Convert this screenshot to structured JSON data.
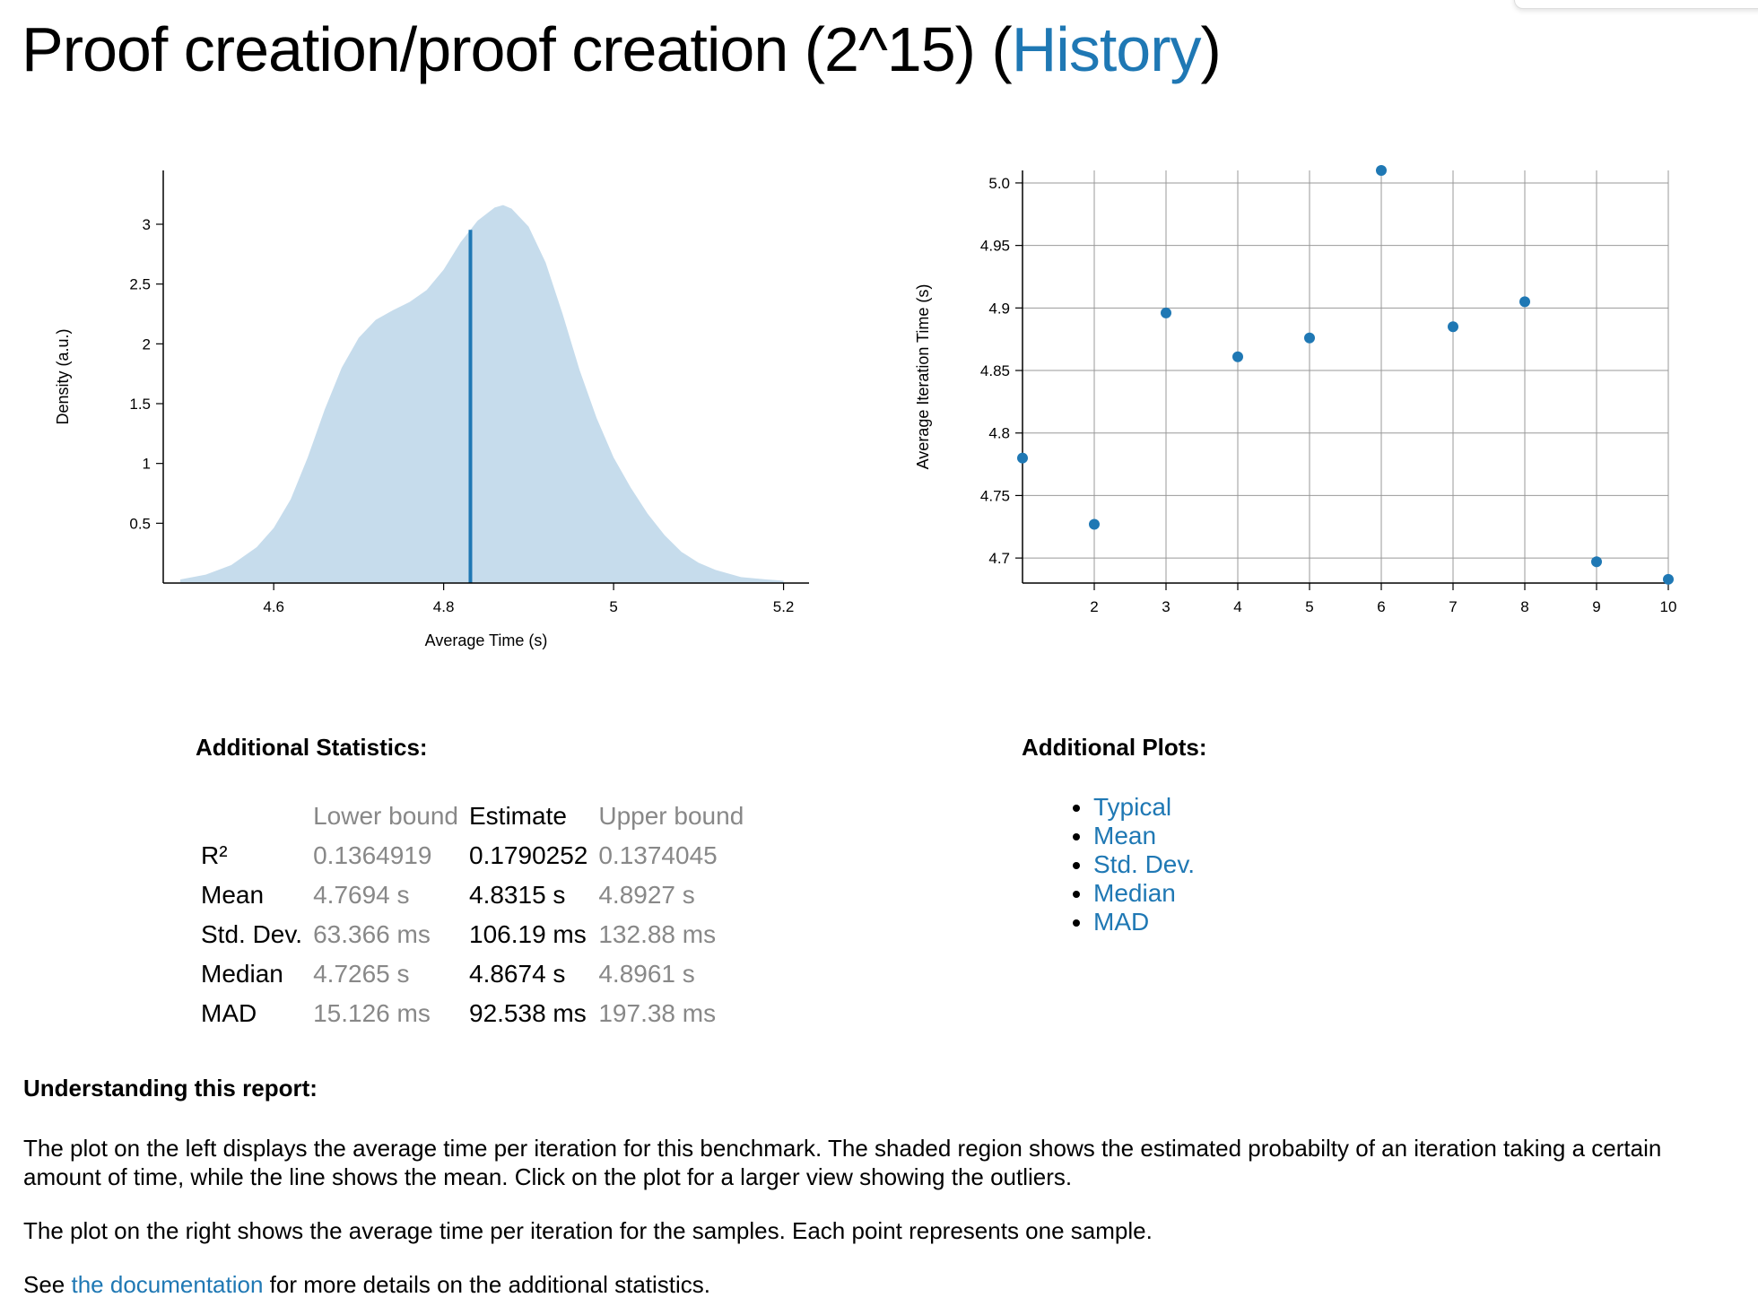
{
  "page": {
    "title_prefix": "Proof creation/proof creation (2^15) (",
    "history_link": "History",
    "title_suffix": ")"
  },
  "pdf_plot": {
    "type": "area",
    "ylabel": "Density (a.u.)",
    "xlabel": "Average Time (s)",
    "x_ticks": [
      "4.6",
      "4.8",
      "5",
      "5.2"
    ],
    "y_ticks": [
      "0.5",
      "1",
      "1.5",
      "2",
      "2.5",
      "3"
    ],
    "xlim": [
      4.47,
      5.23
    ],
    "ylim": [
      0,
      3.45
    ],
    "mean": 4.8315,
    "fill_color": "#c6dcec",
    "line_color": "#1f78b4",
    "density": {
      "x": [
        4.49,
        4.52,
        4.55,
        4.58,
        4.6,
        4.62,
        4.64,
        4.66,
        4.68,
        4.7,
        4.72,
        4.74,
        4.76,
        4.78,
        4.8,
        4.82,
        4.84,
        4.86,
        4.87,
        4.88,
        4.9,
        4.92,
        4.94,
        4.96,
        4.98,
        5.0,
        5.02,
        5.04,
        5.06,
        5.08,
        5.1,
        5.12,
        5.15,
        5.18,
        5.2
      ],
      "y": [
        0.03,
        0.07,
        0.15,
        0.3,
        0.46,
        0.7,
        1.05,
        1.45,
        1.8,
        2.05,
        2.2,
        2.28,
        2.35,
        2.45,
        2.62,
        2.85,
        3.03,
        3.14,
        3.16,
        3.13,
        2.98,
        2.68,
        2.25,
        1.78,
        1.38,
        1.05,
        0.8,
        0.58,
        0.4,
        0.26,
        0.17,
        0.11,
        0.05,
        0.03,
        0.02
      ]
    }
  },
  "iter_plot": {
    "type": "scatter",
    "ylabel": "Average Iteration Time (s)",
    "x_ticks": [
      "2",
      "3",
      "4",
      "5",
      "6",
      "7",
      "8",
      "9",
      "10"
    ],
    "y_ticks": [
      "4.7",
      "4.75",
      "4.8",
      "4.85",
      "4.9",
      "4.95",
      "5.0"
    ],
    "xlim": [
      1,
      10
    ],
    "ylim": [
      4.68,
      5.01
    ],
    "grid": true,
    "point_color": "#1f78b4",
    "points": {
      "x": [
        1,
        2,
        3,
        4,
        5,
        6,
        7,
        8,
        9,
        10
      ],
      "y": [
        4.78,
        4.727,
        4.896,
        4.861,
        4.876,
        5.01,
        4.885,
        4.905,
        4.697,
        4.683
      ]
    }
  },
  "stats": {
    "heading": "Additional Statistics:",
    "headers": [
      "Lower bound",
      "Estimate",
      "Upper bound"
    ],
    "rows": [
      {
        "label": "R²",
        "lb": "0.1364919",
        "est": "0.1790252",
        "ub": "0.1374045"
      },
      {
        "label": "Mean",
        "lb": "4.7694 s",
        "est": "4.8315 s",
        "ub": "4.8927 s"
      },
      {
        "label": "Std. Dev.",
        "lb": "63.366 ms",
        "est": "106.19 ms",
        "ub": "132.88 ms"
      },
      {
        "label": "Median",
        "lb": "4.7265 s",
        "est": "4.8674 s",
        "ub": "4.8961 s"
      },
      {
        "label": "MAD",
        "lb": "15.126 ms",
        "est": "92.538 ms",
        "ub": "197.38 ms"
      }
    ]
  },
  "plots": {
    "heading": "Additional Plots:",
    "links": [
      "Typical",
      "Mean",
      "Std. Dev.",
      "Median",
      "MAD"
    ]
  },
  "understanding": {
    "heading": "Understanding this report:",
    "para1": "The plot on the left displays the average time per iteration for this benchmark. The shaded region shows the estimated probabilty of an iteration taking a certain amount of time, while the line shows the mean. Click on the plot for a larger view showing the outliers.",
    "para2": "The plot on the right shows the average time per iteration for the samples. Each point represents one sample.",
    "para3_prefix": "See ",
    "para3_link": "the documentation",
    "para3_suffix": " for more details on the additional statistics."
  }
}
